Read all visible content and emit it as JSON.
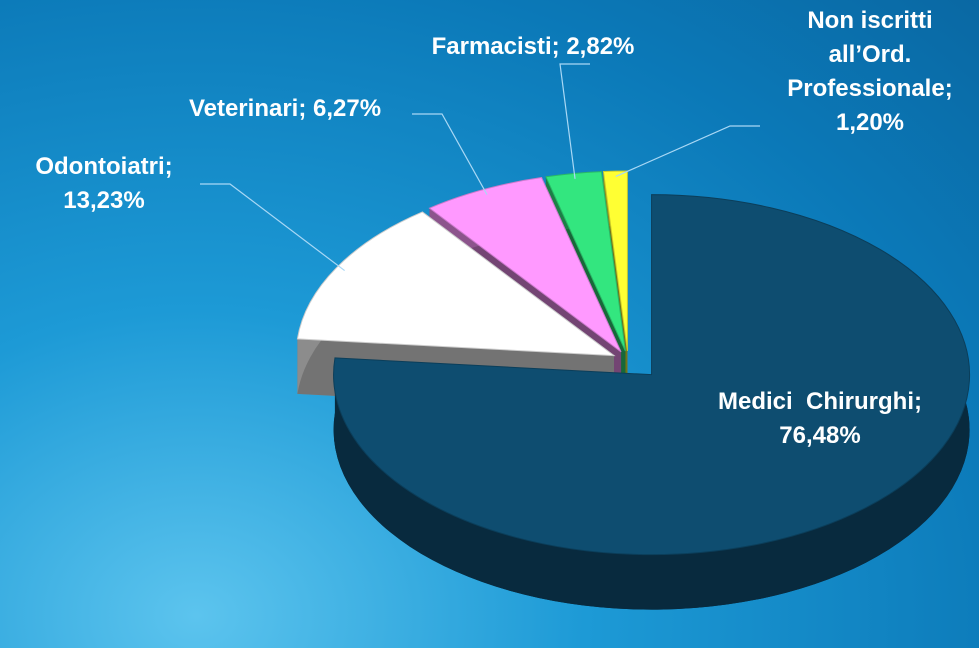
{
  "chart_data": {
    "type": "pie3d",
    "categories": [
      "Medici  Chirurghi;",
      "Odontoiatri;",
      "Veterinari;",
      "Farmacisti;",
      "Non iscritti all’Ord. Professionale;"
    ],
    "values": [
      76.48,
      13.23,
      6.27,
      2.82,
      1.2
    ],
    "value_labels": [
      "76,48%",
      "13,23%",
      "6,27%",
      "2,82%",
      "1,20%"
    ],
    "colors": [
      "#0e4d70",
      "#ffffff",
      "#ff99ff",
      "#33e67f",
      "#ffff33"
    ]
  }
}
